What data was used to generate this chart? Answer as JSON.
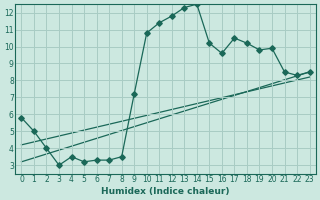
{
  "xlabel": "Humidex (Indice chaleur)",
  "ylabel": "",
  "bg_color": "#cce8e0",
  "grid_color": "#a8ccc4",
  "line_color": "#1a6858",
  "xlim": [
    -0.5,
    23.5
  ],
  "ylim": [
    2.5,
    12.5
  ],
  "xticks": [
    0,
    1,
    2,
    3,
    4,
    5,
    6,
    7,
    8,
    9,
    10,
    11,
    12,
    13,
    14,
    15,
    16,
    17,
    18,
    19,
    20,
    21,
    22,
    23
  ],
  "yticks": [
    3,
    4,
    5,
    6,
    7,
    8,
    9,
    10,
    11,
    12
  ],
  "curve1_x": [
    0,
    1,
    2,
    3,
    4,
    5,
    6,
    7,
    8,
    9,
    10,
    11,
    12,
    13,
    14,
    15,
    16,
    17,
    18,
    19,
    20,
    21,
    22,
    23
  ],
  "curve1_y": [
    5.8,
    5.0,
    4.0,
    3.0,
    3.5,
    3.2,
    3.3,
    3.3,
    3.5,
    7.2,
    10.8,
    11.4,
    11.8,
    12.3,
    12.5,
    10.2,
    9.6,
    10.5,
    10.2,
    9.8,
    9.9,
    8.5,
    8.3,
    8.5
  ],
  "line2_x": [
    0,
    23
  ],
  "line2_y": [
    3.2,
    8.5
  ],
  "line3_x": [
    0,
    23
  ],
  "line3_y": [
    4.2,
    8.2
  ],
  "marker": "D",
  "markersize": 2.8,
  "linewidth": 0.9
}
